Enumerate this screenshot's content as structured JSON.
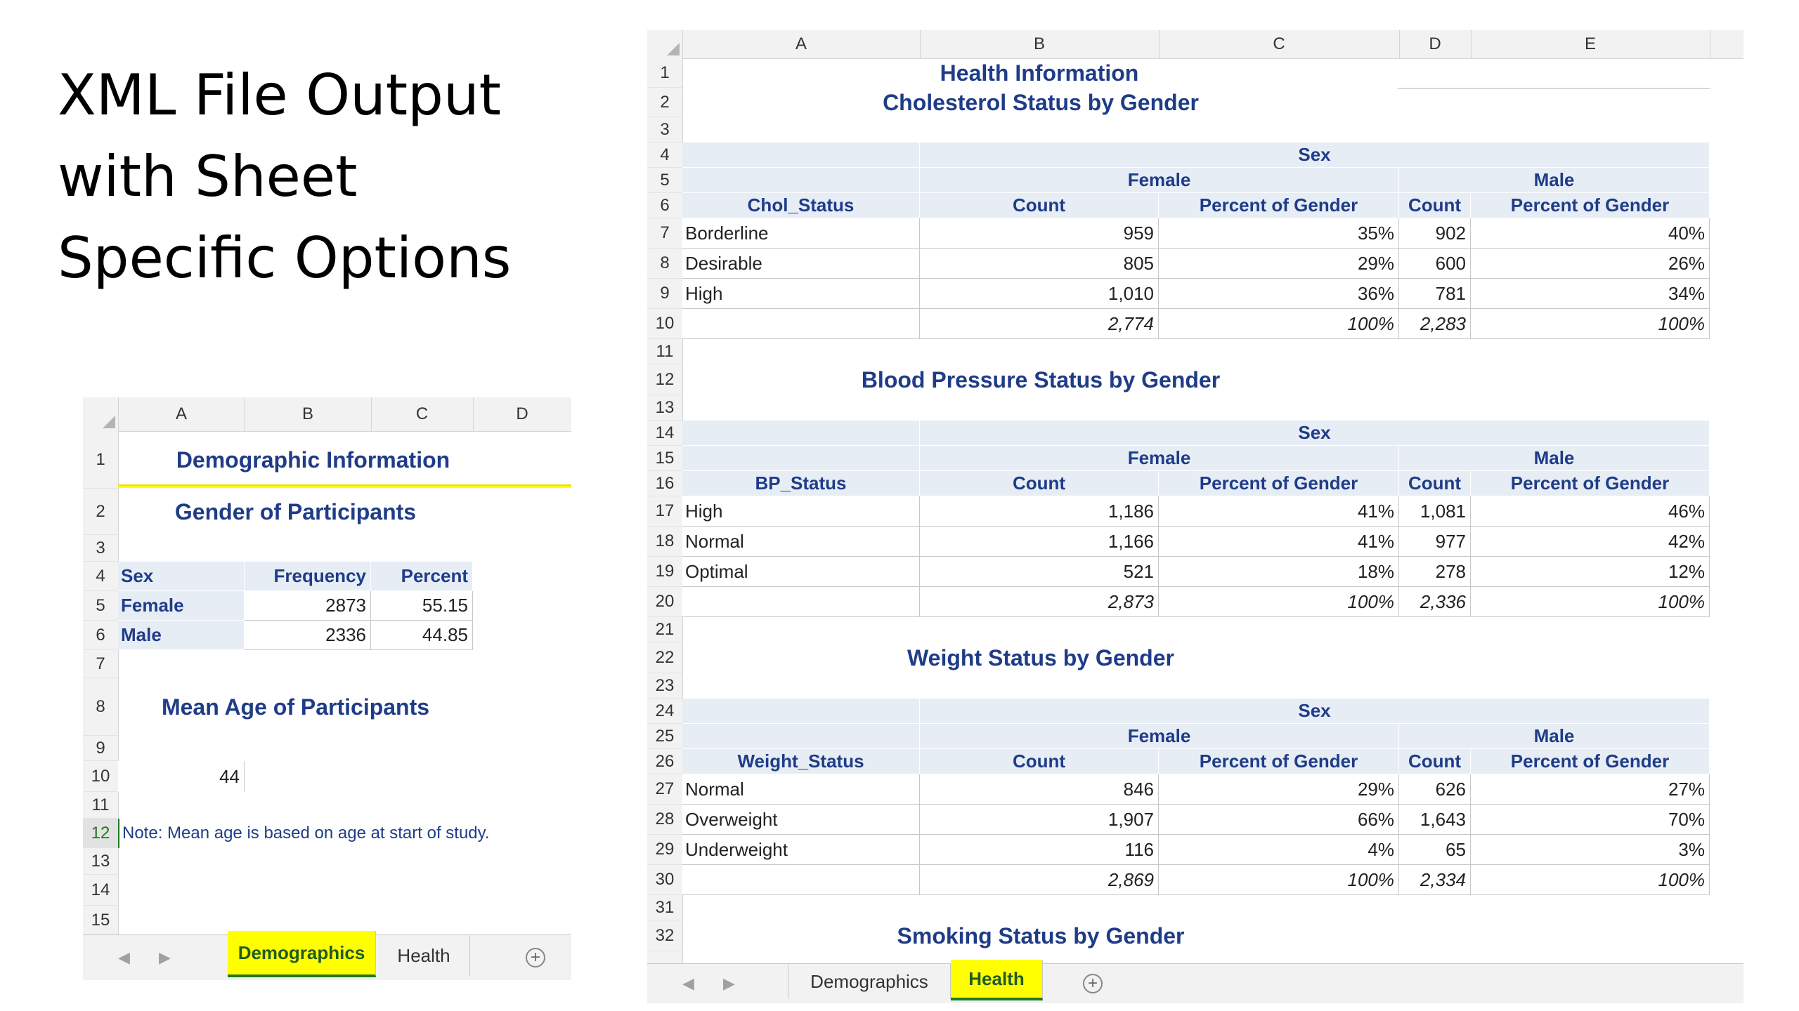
{
  "slide": {
    "title": "XML File Output\nwith Sheet\nSpecific Options"
  },
  "demographics_sheet": {
    "columns": [
      "A",
      "B",
      "C",
      "D"
    ],
    "rows": [
      "1",
      "2",
      "3",
      "4",
      "5",
      "6",
      "7",
      "8",
      "9",
      "10",
      "11",
      "12",
      "13",
      "14",
      "15"
    ],
    "title": "Demographic Information",
    "gender_title": "Gender of Participants",
    "gender_table": {
      "headers": [
        "Sex",
        "Frequency",
        "Percent"
      ],
      "rows": [
        {
          "sex": "Female",
          "frequency": "2873",
          "percent": "55.15"
        },
        {
          "sex": "Male",
          "frequency": "2336",
          "percent": "44.85"
        }
      ]
    },
    "age_title": "Mean Age of Participants",
    "mean_age": "44",
    "note": "Note: Mean age is based on age at start of study.",
    "tabs": [
      "Demographics",
      "Health"
    ],
    "active_tab": "Demographics",
    "highlight_color": "#ffff00"
  },
  "health_sheet": {
    "columns": [
      "A",
      "B",
      "C",
      "D",
      "E"
    ],
    "rows": [
      "1",
      "2",
      "3",
      "4",
      "5",
      "6",
      "7",
      "8",
      "9",
      "10",
      "11",
      "12",
      "13",
      "14",
      "15",
      "16",
      "17",
      "18",
      "19",
      "20",
      "21",
      "22",
      "23",
      "24",
      "25",
      "26",
      "27",
      "28",
      "29",
      "30",
      "31",
      "32"
    ],
    "title": "Health Information",
    "sections": [
      {
        "title": "Cholesterol Status by Gender",
        "sex_label": "Sex",
        "female_label": "Female",
        "male_label": "Male",
        "var_label": "Chol_Status",
        "count_label": "Count",
        "pct_label": "Percent of Gender",
        "rows": [
          {
            "label": "Borderline",
            "f_count": "959",
            "f_pct": "35%",
            "m_count": "902",
            "m_pct": "40%"
          },
          {
            "label": "Desirable",
            "f_count": "805",
            "f_pct": "29%",
            "m_count": "600",
            "m_pct": "26%"
          },
          {
            "label": "High",
            "f_count": "1,010",
            "f_pct": "36%",
            "m_count": "781",
            "m_pct": "34%"
          }
        ],
        "total": {
          "f_count": "2,774",
          "f_pct": "100%",
          "m_count": "2,283",
          "m_pct": "100%"
        }
      },
      {
        "title": "Blood Pressure Status by Gender",
        "sex_label": "Sex",
        "female_label": "Female",
        "male_label": "Male",
        "var_label": "BP_Status",
        "count_label": "Count",
        "pct_label": "Percent of Gender",
        "rows": [
          {
            "label": "High",
            "f_count": "1,186",
            "f_pct": "41%",
            "m_count": "1,081",
            "m_pct": "46%"
          },
          {
            "label": "Normal",
            "f_count": "1,166",
            "f_pct": "41%",
            "m_count": "977",
            "m_pct": "42%"
          },
          {
            "label": "Optimal",
            "f_count": "521",
            "f_pct": "18%",
            "m_count": "278",
            "m_pct": "12%"
          }
        ],
        "total": {
          "f_count": "2,873",
          "f_pct": "100%",
          "m_count": "2,336",
          "m_pct": "100%"
        }
      },
      {
        "title": "Weight Status by Gender",
        "sex_label": "Sex",
        "female_label": "Female",
        "male_label": "Male",
        "var_label": "Weight_Status",
        "count_label": "Count",
        "pct_label": "Percent of Gender",
        "rows": [
          {
            "label": "Normal",
            "f_count": "846",
            "f_pct": "29%",
            "m_count": "626",
            "m_pct": "27%"
          },
          {
            "label": "Overweight",
            "f_count": "1,907",
            "f_pct": "66%",
            "m_count": "1,643",
            "m_pct": "70%"
          },
          {
            "label": "Underweight",
            "f_count": "116",
            "f_pct": "4%",
            "m_count": "65",
            "m_pct": "3%"
          }
        ],
        "total": {
          "f_count": "2,869",
          "f_pct": "100%",
          "m_count": "2,334",
          "m_pct": "100%"
        }
      }
    ],
    "smoking_title": "Smoking Status by Gender",
    "tabs": [
      "Demographics",
      "Health"
    ],
    "active_tab": "Health"
  }
}
